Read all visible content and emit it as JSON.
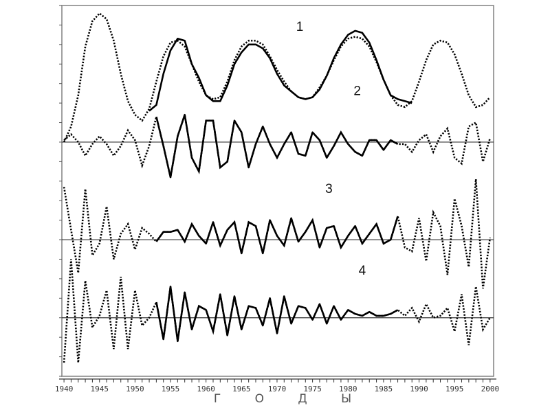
{
  "chart_data": {
    "type": "line",
    "title": "",
    "xlabel": "Г О Д Ы",
    "ylabel": "",
    "xlim": [
      1939.7,
      2000.5
    ],
    "ylim": [
      0,
      19
    ],
    "x_ticks": [
      1940,
      1945,
      1950,
      1955,
      1960,
      1965,
      1970,
      1975,
      1980,
      1985,
      1990,
      1995,
      2000
    ],
    "x_tick_labels": [
      "1940",
      "1945",
      "1950",
      "1955",
      "1960",
      "1965",
      "1970",
      "1975",
      "1980",
      "1985",
      "1990",
      "1995",
      "2000"
    ],
    "y_tick_labels": [],
    "grid": false,
    "reference_lines": [
      12,
      7,
      3
    ],
    "annotations": [
      {
        "text": "1",
        "x": 1973.2,
        "y": 17.7
      },
      {
        "text": "2",
        "x": 1981.3,
        "y": 14.4
      },
      {
        "text": "3",
        "x": 1977.3,
        "y": 9.4
      },
      {
        "text": "4",
        "x": 1982.0,
        "y": 5.2
      }
    ],
    "curves": [
      {
        "label": "1",
        "dotted": {
          "x_start": 1940,
          "values": [
            12.0,
            12.8,
            14.4,
            16.9,
            18.2,
            18.6,
            18.3,
            17.2,
            15.5,
            14.1,
            13.4,
            13.1,
            13.7,
            15.1,
            16.4,
            17.1,
            17.2,
            16.9,
            16.0,
            15.1,
            14.4,
            14.2,
            14.3,
            15.1,
            16.2,
            16.9,
            17.2,
            17.2,
            17.0,
            16.4,
            15.7,
            15.1,
            14.6,
            14.3,
            14.2,
            14.3,
            14.8,
            15.4,
            16.2,
            16.9,
            17.3,
            17.4,
            17.3,
            16.9,
            16.1,
            15.2,
            14.4,
            13.9,
            13.8,
            14.1,
            15.1,
            16.2,
            17.0,
            17.2,
            17.1,
            16.5,
            15.5,
            14.4,
            13.8,
            13.9,
            14.3
          ]
        },
        "solid": {
          "x_start": 1952,
          "values": [
            13.6,
            13.9,
            15.5,
            16.7,
            17.3,
            17.2,
            16.0,
            15.3,
            14.4,
            14.1,
            14.1,
            14.9,
            16.0,
            16.6,
            17.0,
            17.0,
            16.8,
            16.3,
            15.5,
            14.9,
            14.6,
            14.3,
            14.2,
            14.3,
            14.7,
            15.4,
            16.3,
            17.0,
            17.5,
            17.7,
            17.6,
            17.1,
            16.2,
            15.2,
            14.4,
            14.2,
            14.1,
            14.0
          ]
        }
      },
      {
        "label": "2",
        "dotted": {
          "x_start": 1940,
          "values": [
            12.1,
            12.4,
            12.0,
            11.3,
            11.9,
            12.3,
            11.9,
            11.3,
            11.8,
            12.6,
            12.1,
            10.8,
            11.8,
            13.3,
            11.8,
            10.2,
            12.3,
            13.4,
            11.2,
            10.5,
            13.1,
            13.1,
            10.7,
            11.0,
            13.1,
            12.5,
            10.7,
            11.9,
            12.8,
            11.9,
            11.2,
            11.9,
            12.5,
            11.4,
            11.3,
            12.5,
            12.1,
            11.2,
            11.8,
            12.5,
            11.9,
            11.5,
            11.3,
            12.1,
            12.1,
            11.6,
            12.1,
            11.9,
            11.9,
            11.5,
            12.1,
            12.4,
            11.5,
            12.3,
            12.7,
            11.2,
            10.9,
            12.8,
            13.0,
            11.0,
            12.2
          ]
        },
        "solid": {
          "x_start": 1953,
          "values": [
            13.3,
            11.8,
            10.2,
            12.3,
            13.4,
            11.2,
            10.5,
            13.1,
            13.1,
            10.7,
            11.0,
            13.1,
            12.5,
            10.7,
            11.9,
            12.8,
            11.9,
            11.2,
            11.9,
            12.5,
            11.4,
            11.3,
            12.5,
            12.1,
            11.2,
            11.8,
            12.5,
            11.9,
            11.5,
            11.3,
            12.1,
            12.1,
            11.6,
            12.1,
            11.9
          ]
        }
      },
      {
        "label": "3",
        "dotted": {
          "x_start": 1940,
          "values": [
            9.7,
            7.5,
            5.3,
            9.6,
            6.2,
            6.8,
            8.7,
            6.0,
            7.3,
            7.8,
            6.5,
            7.6,
            7.3,
            6.9,
            7.4,
            7.4,
            7.5,
            6.9,
            7.8,
            7.2,
            6.8,
            7.9,
            6.7,
            7.5,
            7.9,
            6.3,
            7.9,
            7.7,
            6.3,
            8.0,
            7.2,
            6.7,
            8.1,
            6.9,
            7.4,
            8.0,
            6.6,
            7.6,
            7.7,
            6.6,
            7.2,
            7.7,
            6.8,
            7.3,
            7.8,
            6.8,
            7.0,
            8.2,
            6.6,
            6.4,
            8.1,
            5.9,
            8.4,
            7.7,
            5.2,
            9.1,
            7.7,
            5.6,
            10.1,
            4.5,
            7.1
          ]
        },
        "solid": {
          "x_start": 1953,
          "values": [
            6.9,
            7.4,
            7.4,
            7.5,
            6.9,
            7.8,
            7.2,
            6.8,
            7.9,
            6.7,
            7.5,
            7.9,
            6.3,
            7.9,
            7.7,
            6.3,
            8.0,
            7.2,
            6.7,
            8.1,
            6.9,
            7.4,
            8.0,
            6.6,
            7.6,
            7.7,
            6.6,
            7.2,
            7.7,
            6.8,
            7.3,
            7.8,
            6.8,
            7.0,
            8.2
          ]
        }
      },
      {
        "label": "4",
        "dotted": {
          "x_start": 1940,
          "values": [
            0.7,
            6.0,
            0.7,
            4.9,
            2.5,
            3.1,
            4.4,
            1.4,
            5.1,
            1.4,
            4.4,
            2.6,
            3.0,
            3.8,
            1.9,
            4.6,
            1.8,
            4.3,
            2.4,
            3.6,
            3.4,
            2.3,
            4.2,
            2.1,
            4.1,
            2.4,
            3.6,
            3.5,
            2.6,
            4.0,
            2.2,
            4.1,
            2.7,
            3.6,
            3.5,
            2.9,
            3.7,
            2.7,
            3.6,
            2.9,
            3.4,
            3.2,
            3.1,
            3.3,
            3.1,
            3.1,
            3.2,
            3.4,
            3.1,
            3.5,
            2.8,
            3.7,
            3.0,
            3.1,
            3.5,
            2.3,
            4.2,
            1.6,
            4.6,
            2.4,
            3.0
          ]
        },
        "solid": {
          "x_start": 1953,
          "values": [
            3.8,
            1.9,
            4.6,
            1.8,
            4.3,
            2.4,
            3.6,
            3.4,
            2.3,
            4.2,
            2.1,
            4.1,
            2.4,
            3.6,
            3.5,
            2.6,
            4.0,
            2.2,
            4.1,
            2.7,
            3.6,
            3.5,
            2.9,
            3.7,
            2.7,
            3.6,
            2.9,
            3.4,
            3.2,
            3.1,
            3.3,
            3.1,
            3.1,
            3.2,
            3.4
          ]
        }
      }
    ],
    "colors": {
      "line": "#000000",
      "frame": "#808080",
      "axis_text": "#333333"
    }
  }
}
